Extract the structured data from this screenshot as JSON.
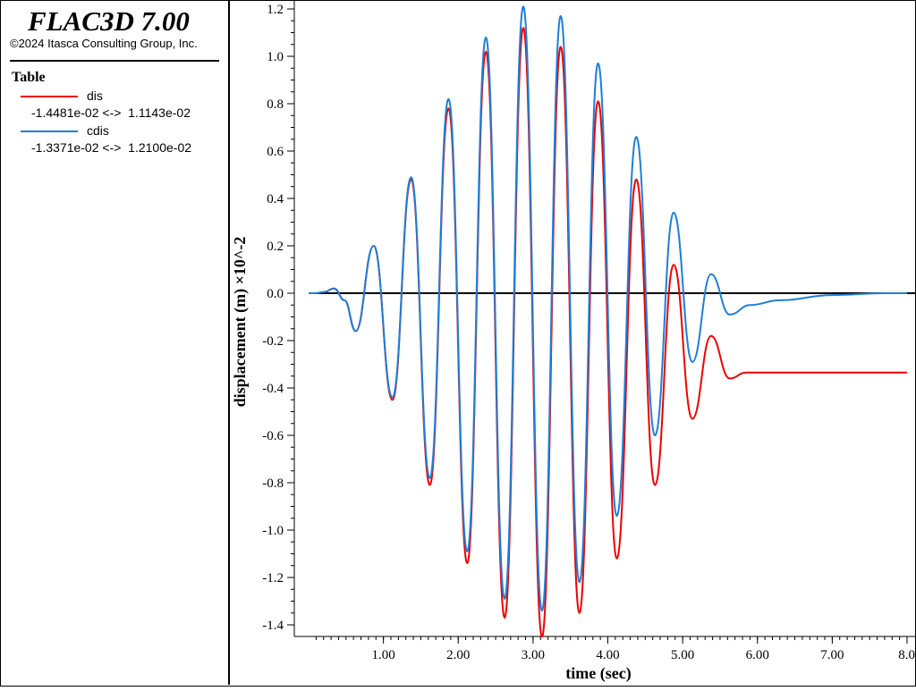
{
  "app": {
    "title": "FLAC3D 7.00",
    "copyright": "©2024 Itasca Consulting Group, Inc."
  },
  "legend": {
    "heading": "Table",
    "items": [
      {
        "name": "dis",
        "range": "-1.4481e-02 <->  1.1143e-02",
        "color": "#ee0000"
      },
      {
        "name": "cdis",
        "range": "-1.3371e-02 <->  1.2100e-02",
        "color": "#1e7fd6"
      }
    ]
  },
  "chart_data": {
    "type": "line",
    "xlabel": "time (sec)",
    "ylabel": "displacement (m) ×10^-2",
    "xlim": [
      0.0,
      8.0
    ],
    "ylim": [
      -1.45,
      1.22
    ],
    "x_ticks": [
      "1.00",
      "2.00",
      "3.00",
      "4.00",
      "5.00",
      "6.00",
      "7.00",
      "8.0"
    ],
    "y_ticks": [
      "1.2",
      "1.0",
      "0.8",
      "0.6",
      "0.4",
      "0.2",
      "0.0",
      "-0.2",
      "-0.4",
      "-0.6",
      "-0.8",
      "-1.0",
      "-1.2",
      "-1.4"
    ],
    "zero_line": true,
    "grid": false,
    "series": [
      {
        "name": "dis",
        "color": "#ee0000",
        "x": [
          0.0,
          0.1,
          0.2,
          0.34,
          0.48,
          0.63,
          0.87,
          1.12,
          1.37,
          1.62,
          1.87,
          2.12,
          2.37,
          2.62,
          2.87,
          3.12,
          3.37,
          3.62,
          3.87,
          4.12,
          4.38,
          4.63,
          4.88,
          5.13,
          5.38,
          5.63,
          5.85,
          8.0
        ],
        "y": [
          0.0,
          0.0,
          0.005,
          0.02,
          -0.03,
          -0.16,
          0.2,
          -0.45,
          0.48,
          -0.81,
          0.78,
          -1.14,
          1.02,
          -1.37,
          1.12,
          -1.45,
          1.04,
          -1.35,
          0.81,
          -1.12,
          0.48,
          -0.81,
          0.12,
          -0.53,
          -0.18,
          -0.36,
          -0.335,
          -0.335
        ]
      },
      {
        "name": "cdis",
        "color": "#1e7fd6",
        "x": [
          0.0,
          0.1,
          0.2,
          0.34,
          0.48,
          0.63,
          0.87,
          1.12,
          1.37,
          1.62,
          1.87,
          2.12,
          2.37,
          2.62,
          2.87,
          3.12,
          3.37,
          3.62,
          3.87,
          4.12,
          4.38,
          4.63,
          4.88,
          5.13,
          5.38,
          5.63,
          5.9,
          6.3,
          7.0,
          7.7,
          8.0
        ],
        "y": [
          0.0,
          0.0,
          0.005,
          0.02,
          -0.03,
          -0.16,
          0.2,
          -0.44,
          0.49,
          -0.78,
          0.82,
          -1.09,
          1.08,
          -1.29,
          1.21,
          -1.34,
          1.17,
          -1.22,
          0.97,
          -0.94,
          0.66,
          -0.6,
          0.34,
          -0.29,
          0.08,
          -0.09,
          -0.05,
          -0.03,
          -0.008,
          0.0,
          0.0
        ]
      }
    ]
  }
}
